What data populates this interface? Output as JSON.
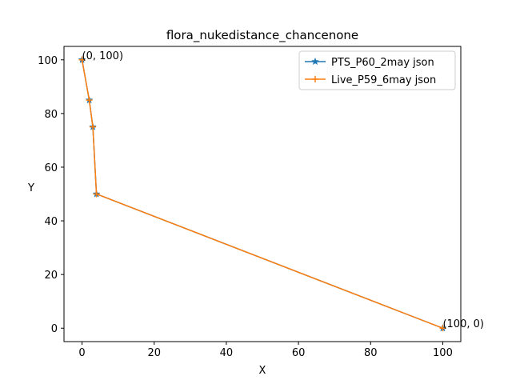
{
  "chart_data": {
    "type": "line",
    "title": "flora_nukedistance_chancenone",
    "xlabel": "X",
    "ylabel": "Y",
    "xlim": [
      -5,
      105
    ],
    "ylim": [
      -5,
      105
    ],
    "xticks": [
      0,
      20,
      40,
      60,
      80,
      100
    ],
    "yticks": [
      0,
      20,
      40,
      60,
      80,
      100
    ],
    "grid": false,
    "legend_position": "top-right",
    "series": [
      {
        "name": "PTS_P60_2may json",
        "color": "#1f77b4",
        "marker": "star",
        "x": [
          0,
          2,
          3,
          4,
          100
        ],
        "y": [
          100,
          85,
          75,
          50,
          0
        ]
      },
      {
        "name": "Live_P59_6may json",
        "color": "#ff7f0e",
        "marker": "plus",
        "x": [
          0,
          2,
          3,
          4,
          100
        ],
        "y": [
          100,
          85,
          75,
          50,
          0
        ]
      }
    ],
    "annotations": [
      {
        "text": "(0, 100)",
        "x": 0,
        "y": 100
      },
      {
        "text": "(100, 0)",
        "x": 100,
        "y": 0
      }
    ]
  }
}
